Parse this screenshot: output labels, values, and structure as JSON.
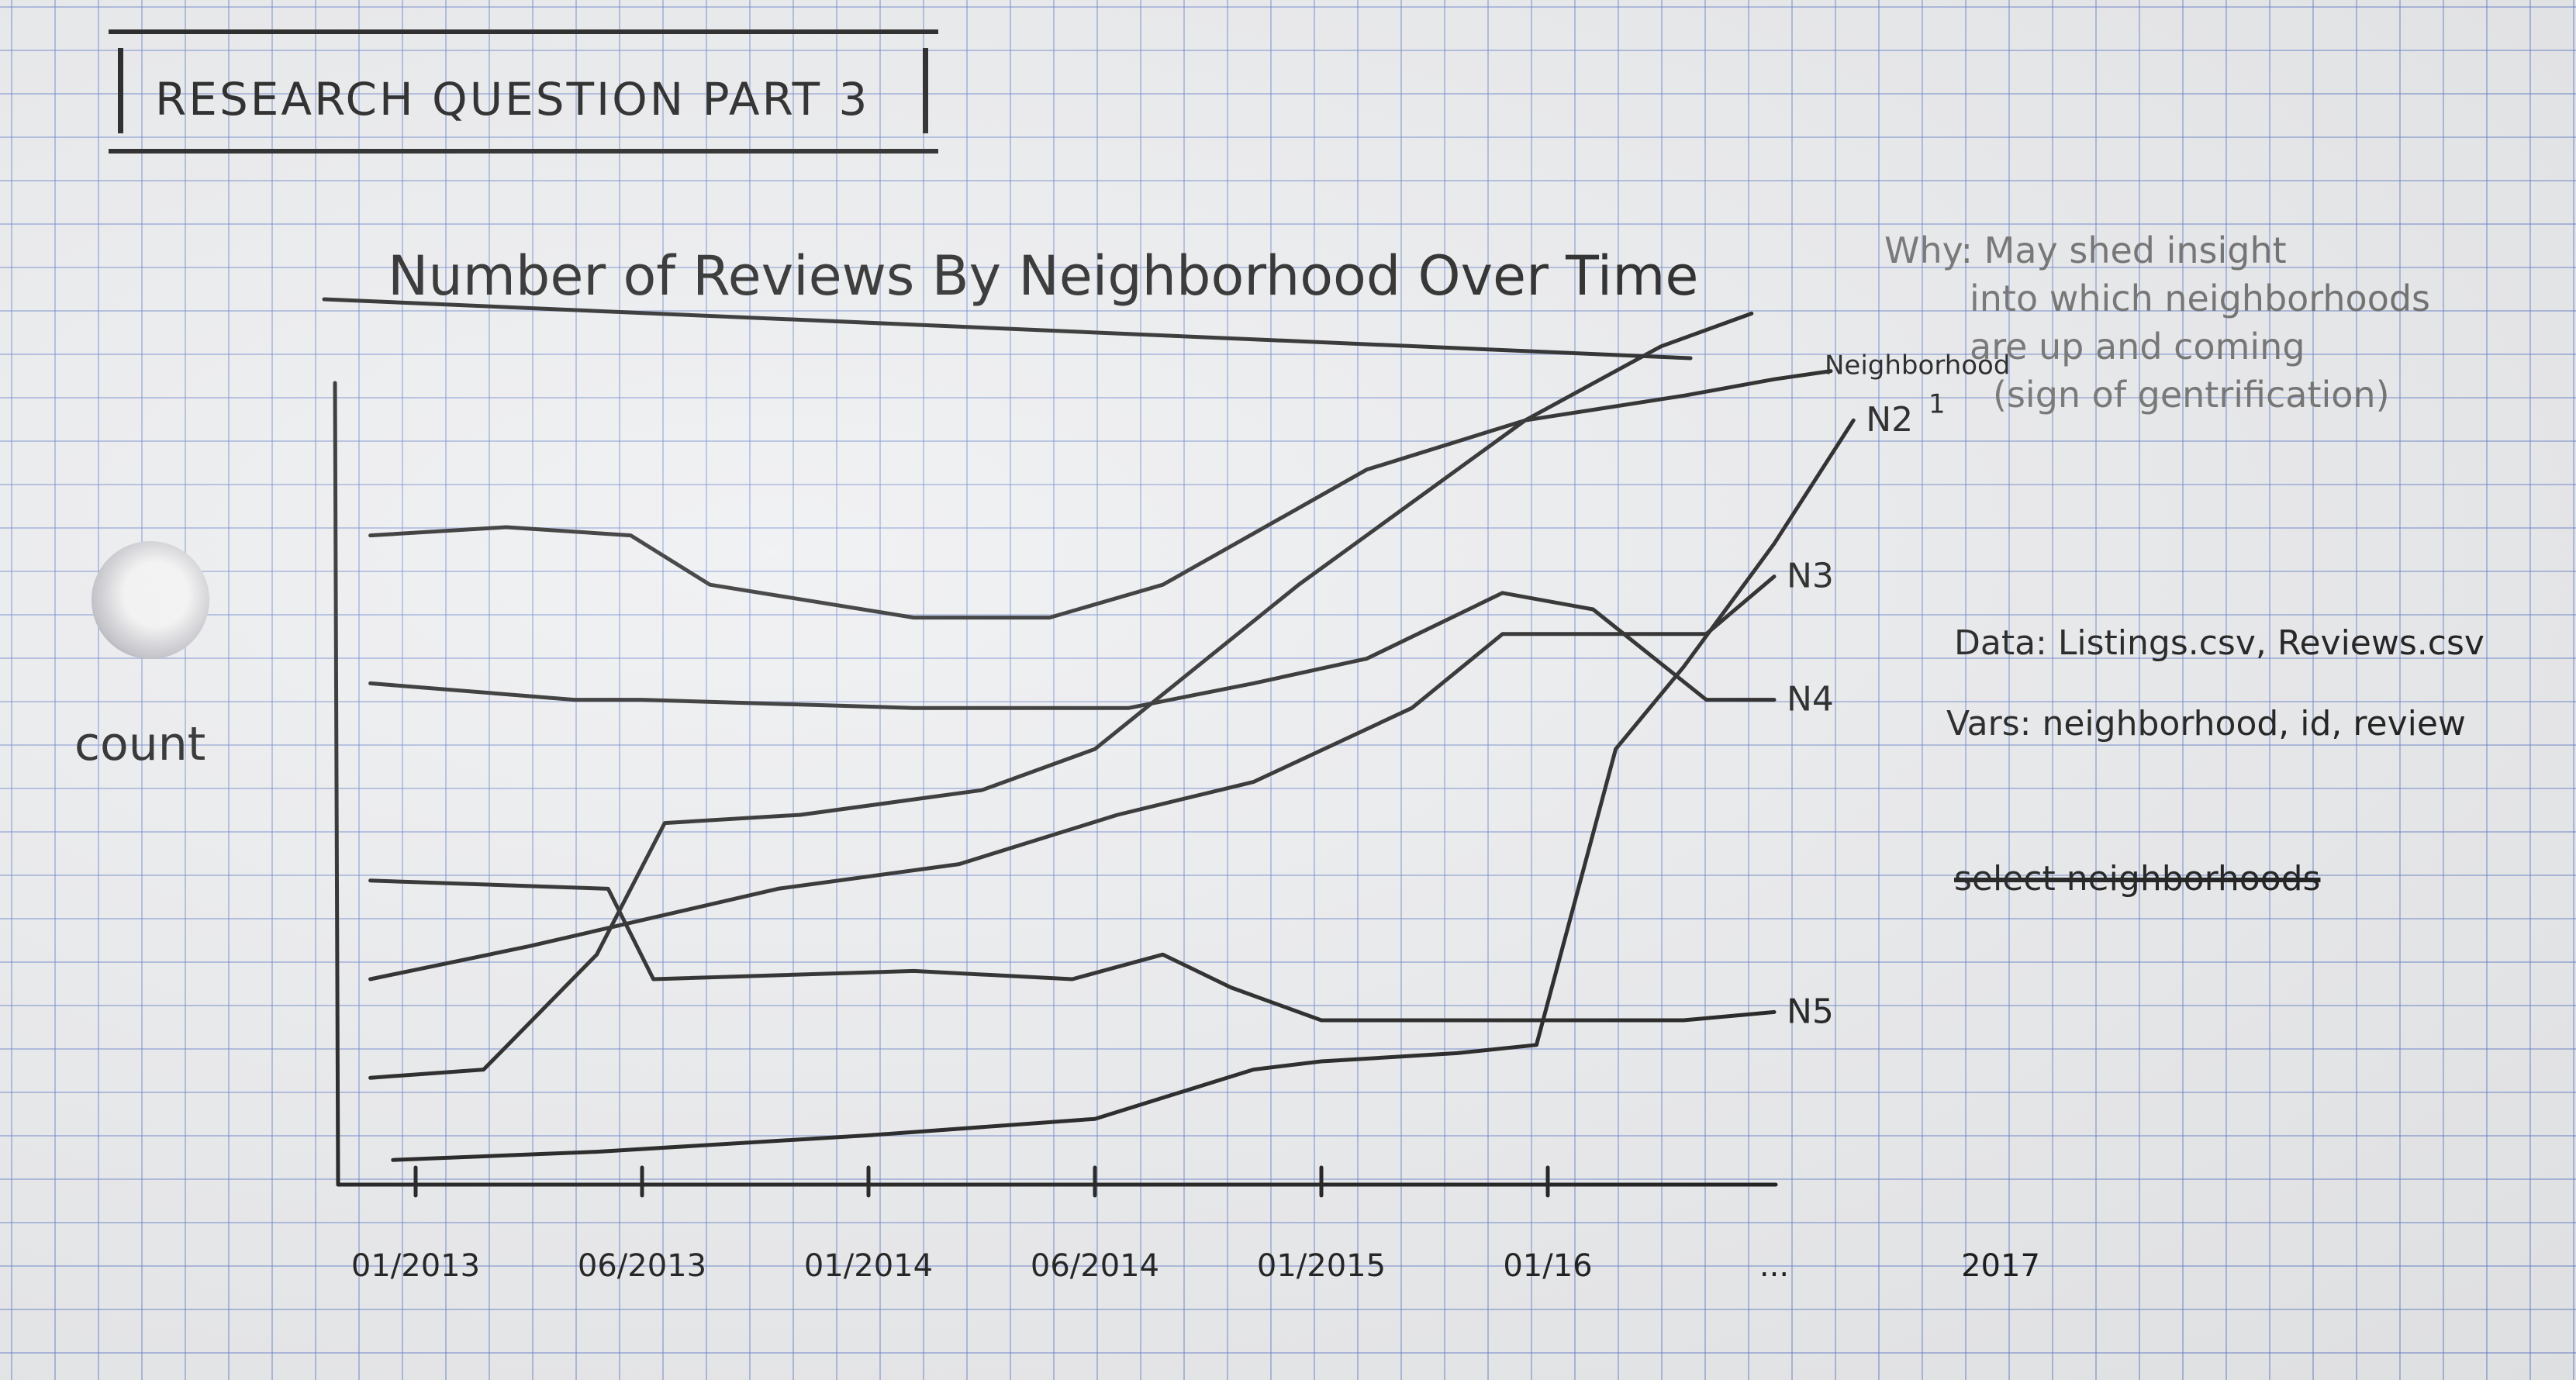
{
  "header": {
    "research_question": "RESEARCH QUESTION PART 3"
  },
  "notes": {
    "why_lines": [
      "Why: May shed insight",
      "into which neighborhoods",
      "are up and coming",
      "(sign of gentrification)"
    ],
    "data": "Data: Listings.csv, Reviews.csv",
    "vars": "Vars: neighborhood, id, review",
    "struck": "select neighborhoods"
  },
  "chart_data": {
    "type": "line",
    "title": "Number of Reviews By Neighborhood Over Time",
    "ylabel": "count",
    "xlabel": "",
    "x_ticks": [
      "01/2013",
      "06/2013",
      "01/2014",
      "06/2014",
      "01/2015",
      "01/16",
      "...",
      "2017"
    ],
    "x_range": [
      0,
      7
    ],
    "y_range": [
      0,
      100
    ],
    "grid": false,
    "legend": "line-end labels",
    "series": [
      {
        "name": "Neighborhood 1",
        "points": [
          [
            -0.2,
            79
          ],
          [
            0.4,
            80
          ],
          [
            0.95,
            79
          ],
          [
            1.3,
            73
          ],
          [
            2.2,
            69
          ],
          [
            2.8,
            69
          ],
          [
            3.3,
            73
          ],
          [
            4.2,
            87
          ],
          [
            4.9,
            93
          ],
          [
            5.6,
            96
          ],
          [
            6.0,
            98
          ],
          [
            6.25,
            99
          ]
        ]
      },
      {
        "name": "",
        "points": [
          [
            -0.2,
            13
          ],
          [
            0.3,
            14
          ],
          [
            0.8,
            28
          ],
          [
            1.1,
            44
          ],
          [
            1.7,
            45
          ],
          [
            2.5,
            48
          ],
          [
            3.0,
            53
          ],
          [
            3.9,
            73
          ],
          [
            4.9,
            93
          ],
          [
            5.5,
            102
          ],
          [
            5.9,
            106
          ]
        ]
      },
      {
        "name": "N2",
        "points": [
          [
            -0.1,
            3
          ],
          [
            0.8,
            4
          ],
          [
            2.0,
            6
          ],
          [
            3.0,
            8
          ],
          [
            3.7,
            14
          ],
          [
            4.0,
            15
          ],
          [
            4.6,
            16
          ],
          [
            4.95,
            17
          ],
          [
            5.3,
            53
          ],
          [
            5.6,
            63
          ],
          [
            6.0,
            78
          ],
          [
            6.35,
            93
          ]
        ]
      },
      {
        "name": "N3",
        "points": [
          [
            -0.2,
            25
          ],
          [
            0.5,
            29
          ],
          [
            1.6,
            36
          ],
          [
            2.4,
            39
          ],
          [
            3.1,
            45
          ],
          [
            3.7,
            49
          ],
          [
            4.4,
            58
          ],
          [
            4.8,
            67
          ],
          [
            5.2,
            67
          ],
          [
            5.7,
            67
          ],
          [
            6.0,
            74
          ]
        ]
      },
      {
        "name": "N4",
        "points": [
          [
            -0.2,
            61
          ],
          [
            0.7,
            59
          ],
          [
            1.0,
            59
          ],
          [
            2.2,
            58
          ],
          [
            3.15,
            58
          ],
          [
            3.7,
            61
          ],
          [
            4.2,
            64
          ],
          [
            4.8,
            72
          ],
          [
            5.2,
            70
          ],
          [
            5.7,
            59
          ],
          [
            6.0,
            59
          ]
        ]
      },
      {
        "name": "N5",
        "points": [
          [
            -0.2,
            37
          ],
          [
            0.85,
            36
          ],
          [
            1.05,
            25
          ],
          [
            2.2,
            26
          ],
          [
            2.9,
            25
          ],
          [
            3.3,
            28
          ],
          [
            3.6,
            24
          ],
          [
            4.0,
            20
          ],
          [
            5.0,
            20
          ],
          [
            5.6,
            20
          ],
          [
            6.0,
            21
          ]
        ]
      }
    ]
  }
}
